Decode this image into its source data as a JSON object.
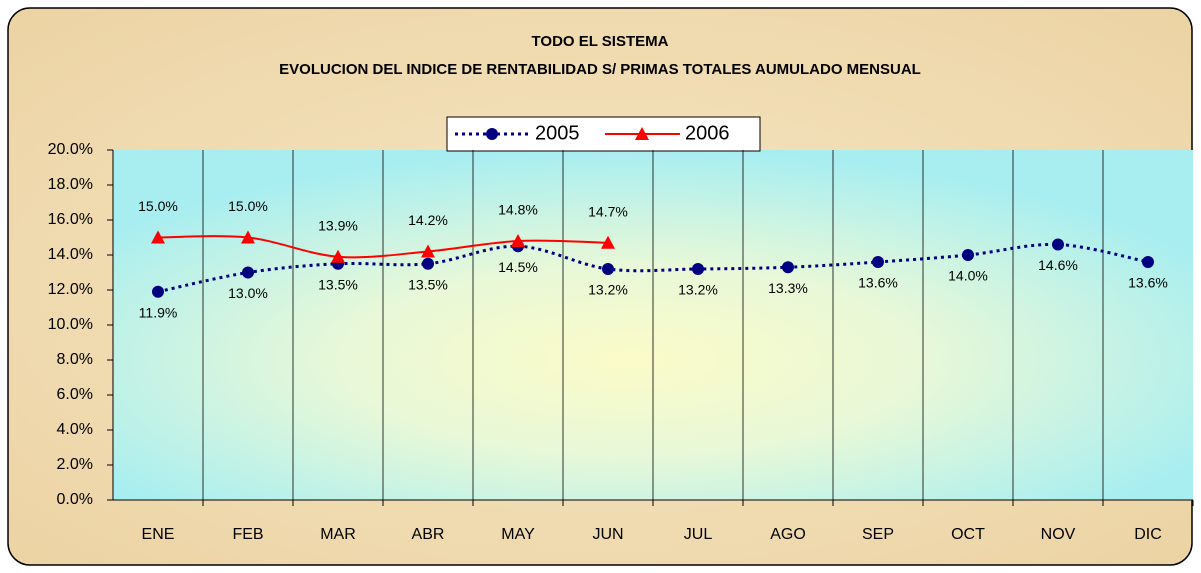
{
  "chart_data": {
    "type": "line",
    "title": "TODO EL SISTEMA",
    "subtitle": "EVOLUCION DEL INDICE DE RENTABILIDAD S/ PRIMAS TOTALES AUMULADO MENSUAL",
    "categories": [
      "ENE",
      "FEB",
      "MAR",
      "ABR",
      "MAY",
      "JUN",
      "JUL",
      "AGO",
      "SEP",
      "OCT",
      "NOV",
      "DIC"
    ],
    "series": [
      {
        "name": "2005",
        "color": "#000080",
        "style": "dotted",
        "marker": "circle",
        "values": [
          11.9,
          13.0,
          13.5,
          13.5,
          14.5,
          13.2,
          13.2,
          13.3,
          13.6,
          14.0,
          14.6,
          13.6
        ],
        "value_labels": [
          "11.9%",
          "13.0%",
          "13.5%",
          "13.5%",
          "14.5%",
          "13.2%",
          "13.2%",
          "13.3%",
          "13.6%",
          "14.0%",
          "14.6%",
          "13.6%"
        ]
      },
      {
        "name": "2006",
        "color": "#ff0000",
        "style": "solid",
        "marker": "triangle",
        "values": [
          15.0,
          15.0,
          13.9,
          14.2,
          14.8,
          14.7,
          null,
          null,
          null,
          null,
          null,
          null
        ],
        "value_labels": [
          "15.0%",
          "15.0%",
          "13.9%",
          "14.2%",
          "14.8%",
          "14.7%",
          null,
          null,
          null,
          null,
          null,
          null
        ]
      }
    ],
    "ylim": [
      0,
      20
    ],
    "yticks": [
      {
        "value": 0,
        "label": "0.0%"
      },
      {
        "value": 2,
        "label": "2.0%"
      },
      {
        "value": 4,
        "label": "4.0%"
      },
      {
        "value": 6,
        "label": "6.0%"
      },
      {
        "value": 8,
        "label": "8.0%"
      },
      {
        "value": 10,
        "label": "10.0%"
      },
      {
        "value": 12,
        "label": "12.0%"
      },
      {
        "value": 14,
        "label": "14.0%"
      },
      {
        "value": 16,
        "label": "16.0%"
      },
      {
        "value": 18,
        "label": "18.0%"
      },
      {
        "value": 20,
        "label": "20.0%"
      }
    ],
    "grid": false,
    "smooth": true
  }
}
